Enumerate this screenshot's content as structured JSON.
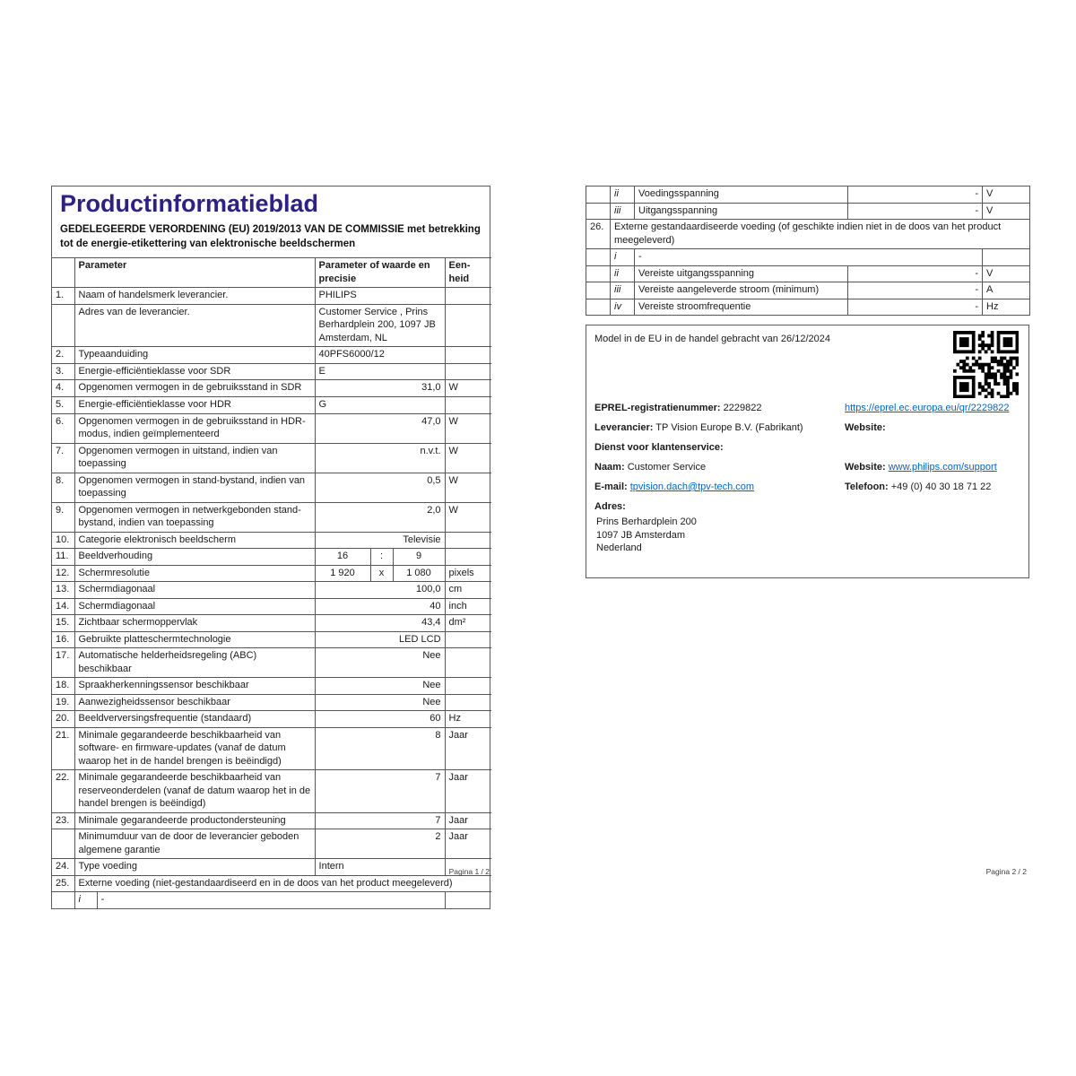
{
  "colors": {
    "title_accent": "#2e2185",
    "link_blue": "#0563c1",
    "border_gray": "#565656"
  },
  "page1": {
    "title": "Productinformatieblad",
    "subtitle": "GEDELEGEERDE VERORDENING (EU) 2019/2013 VAN DE COMMISSIE met betrekking tot de energie-etikettering van elektronische beeldschermen",
    "header": {
      "parameter": "Parameter",
      "value": "Parameter of waarde en precisie",
      "unit": "Een-heid"
    },
    "rows": [
      {
        "num": "1.",
        "param": "Naam of handelsmerk leverancier.",
        "value": "PHILIPS",
        "unit": "",
        "align": "left"
      },
      {
        "num": "",
        "param": "Adres van de leverancier.",
        "value": "Customer Service , Prins Berhardplein 200, 1097 JB Amsterdam, NL",
        "unit": "",
        "align": "left"
      },
      {
        "num": "2.",
        "param": "Typeaanduiding",
        "value": "40PFS6000/12",
        "unit": "",
        "align": "left"
      },
      {
        "num": "3.",
        "param": "Energie-efficiëntieklasse voor SDR",
        "value": "E",
        "unit": "",
        "align": "left"
      },
      {
        "num": "4.",
        "param": "Opgenomen vermogen in de gebruiksstand in SDR",
        "value": "31,0",
        "unit": "W",
        "align": "right"
      },
      {
        "num": "5.",
        "param": "Energie-efficiëntieklasse voor HDR",
        "value": "G",
        "unit": "",
        "align": "left"
      },
      {
        "num": "6.",
        "param": "Opgenomen vermogen in de gebruiksstand in HDR-modus, indien geïmplementeerd",
        "value": "47,0",
        "unit": "W",
        "align": "right"
      },
      {
        "num": "7.",
        "param": "Opgenomen vermogen in uitstand, indien van toepassing",
        "value": "n.v.t.",
        "unit": "W",
        "align": "right"
      },
      {
        "num": "8.",
        "param": "Opgenomen vermogen in stand-bystand, indien van toepassing",
        "value": "0,5",
        "unit": "W",
        "align": "right"
      },
      {
        "num": "9.",
        "param": "Opgenomen vermogen in netwerkgebonden stand-bystand, indien van toepassing",
        "value": "2,0",
        "unit": "W",
        "align": "right"
      },
      {
        "num": "10.",
        "param": "Categorie elektronisch beeldscherm",
        "value": "Televisie",
        "unit": "",
        "align": "right"
      },
      {
        "num": "11.",
        "param": "Beeldverhouding",
        "split": [
          "16",
          ":",
          "9"
        ],
        "unit": ""
      },
      {
        "num": "12.",
        "param": "Schermresolutie",
        "split": [
          "1 920",
          "x",
          "1 080"
        ],
        "unit": "pixels"
      },
      {
        "num": "13.",
        "param": "Schermdiagonaal",
        "value": "100,0",
        "unit": "cm",
        "align": "right"
      },
      {
        "num": "14.",
        "param": "Schermdiagonaal",
        "value": "40",
        "unit": "inch",
        "align": "right"
      },
      {
        "num": "15.",
        "param": "Zichtbaar schermoppervlak",
        "value": "43,4",
        "unit": "dm²",
        "align": "right"
      },
      {
        "num": "16.",
        "param": "Gebruikte platteschermtechnologie",
        "value": "LED LCD",
        "unit": "",
        "align": "right"
      },
      {
        "num": "17.",
        "param": "Automatische helderheidsregeling (ABC) beschikbaar",
        "value": "Nee",
        "unit": "",
        "align": "right"
      },
      {
        "num": "18.",
        "param": "Spraakherkenningssensor beschikbaar",
        "value": "Nee",
        "unit": "",
        "align": "right"
      },
      {
        "num": "19.",
        "param": "Aanwezigheidssensor beschikbaar",
        "value": "Nee",
        "unit": "",
        "align": "right"
      },
      {
        "num": "20.",
        "param": "Beeldverversingsfrequentie (standaard)",
        "value": "60",
        "unit": "Hz",
        "align": "right"
      },
      {
        "num": "21.",
        "param": "Minimale gegarandeerde beschikbaarheid van software- en firmware-updates (vanaf de datum waarop het in de handel brengen is beëindigd)",
        "value": "8",
        "unit": "Jaar",
        "align": "right"
      },
      {
        "num": "22.",
        "param": "Minimale gegarandeerde beschikbaarheid van reserveonderdelen (vanaf de datum waarop het in de handel brengen is beëindigd)",
        "value": "7",
        "unit": "Jaar",
        "align": "right"
      },
      {
        "num": "23.",
        "param": "Minimale gegarandeerde productondersteuning",
        "value": "7",
        "unit": "Jaar",
        "align": "right"
      },
      {
        "num": "",
        "param": "Minimumduur van de door de leverancier geboden algemene garantie",
        "value": "2",
        "unit": "Jaar",
        "align": "right"
      },
      {
        "num": "24.",
        "param": "Type voeding",
        "value": "Intern",
        "unit": "",
        "align": "left"
      },
      {
        "num": "25.",
        "span": "Externe voeding (niet-gestandaardiseerd en in de doos van het product meegeleverd)"
      },
      {
        "num": "",
        "roman": "i",
        "dash": "-",
        "unit": ""
      }
    ],
    "footer": "Pagina 1 / 2"
  },
  "page2": {
    "rows": [
      {
        "num": "",
        "roman": "ii",
        "param": "Voedingsspanning",
        "value": "-",
        "unit": "V",
        "align": "right"
      },
      {
        "num": "",
        "roman": "iii",
        "param": "Uitgangsspanning",
        "value": "-",
        "unit": "V",
        "align": "right"
      },
      {
        "num": "26.",
        "span": "Externe gestandaardiseerde voeding (of geschikte indien niet in de doos van het product meegeleverd)"
      },
      {
        "num": "",
        "roman": "i",
        "dash": "-",
        "unit": ""
      },
      {
        "num": "",
        "roman": "ii",
        "param": "Vereiste uitgangsspanning",
        "value": "-",
        "unit": "V",
        "align": "right"
      },
      {
        "num": "",
        "roman": "iii",
        "param": "Vereiste aangeleverde stroom (minimum)",
        "value": "-",
        "unit": "A",
        "align": "right"
      },
      {
        "num": "",
        "roman": "iv",
        "param": "Vereiste stroomfrequentie",
        "value": "-",
        "unit": "Hz",
        "align": "right"
      }
    ],
    "info": {
      "model_line": "Model in de EU in de handel gebracht van 26/12/2024",
      "eprel_label": "EPREL-registratienummer:",
      "eprel_value": "2229822",
      "eprel_link": "https://eprel.ec.europa.eu/qr/2229822",
      "leverancier_label": "Leverancier:",
      "leverancier_value": "TP Vision Europe B.V. (Fabrikant)",
      "website_label": "Website:",
      "website_value": "www.philips.com/support",
      "dienst_label": "Dienst voor klantenservice:",
      "naam_label": "Naam:",
      "naam_value": "Customer Service",
      "email_label": "E-mail:",
      "email_value": "tpvision.dach@tpv-tech.com",
      "telefoon_label": "Telefoon:",
      "telefoon_value": "+49 (0) 40 30 18 71 22",
      "adres_label": "Adres:",
      "adres_lines": [
        "Prins Berhardplein 200",
        "1097 JB Amsterdam",
        "Nederland"
      ]
    },
    "footer": "Pagina 2 / 2"
  }
}
